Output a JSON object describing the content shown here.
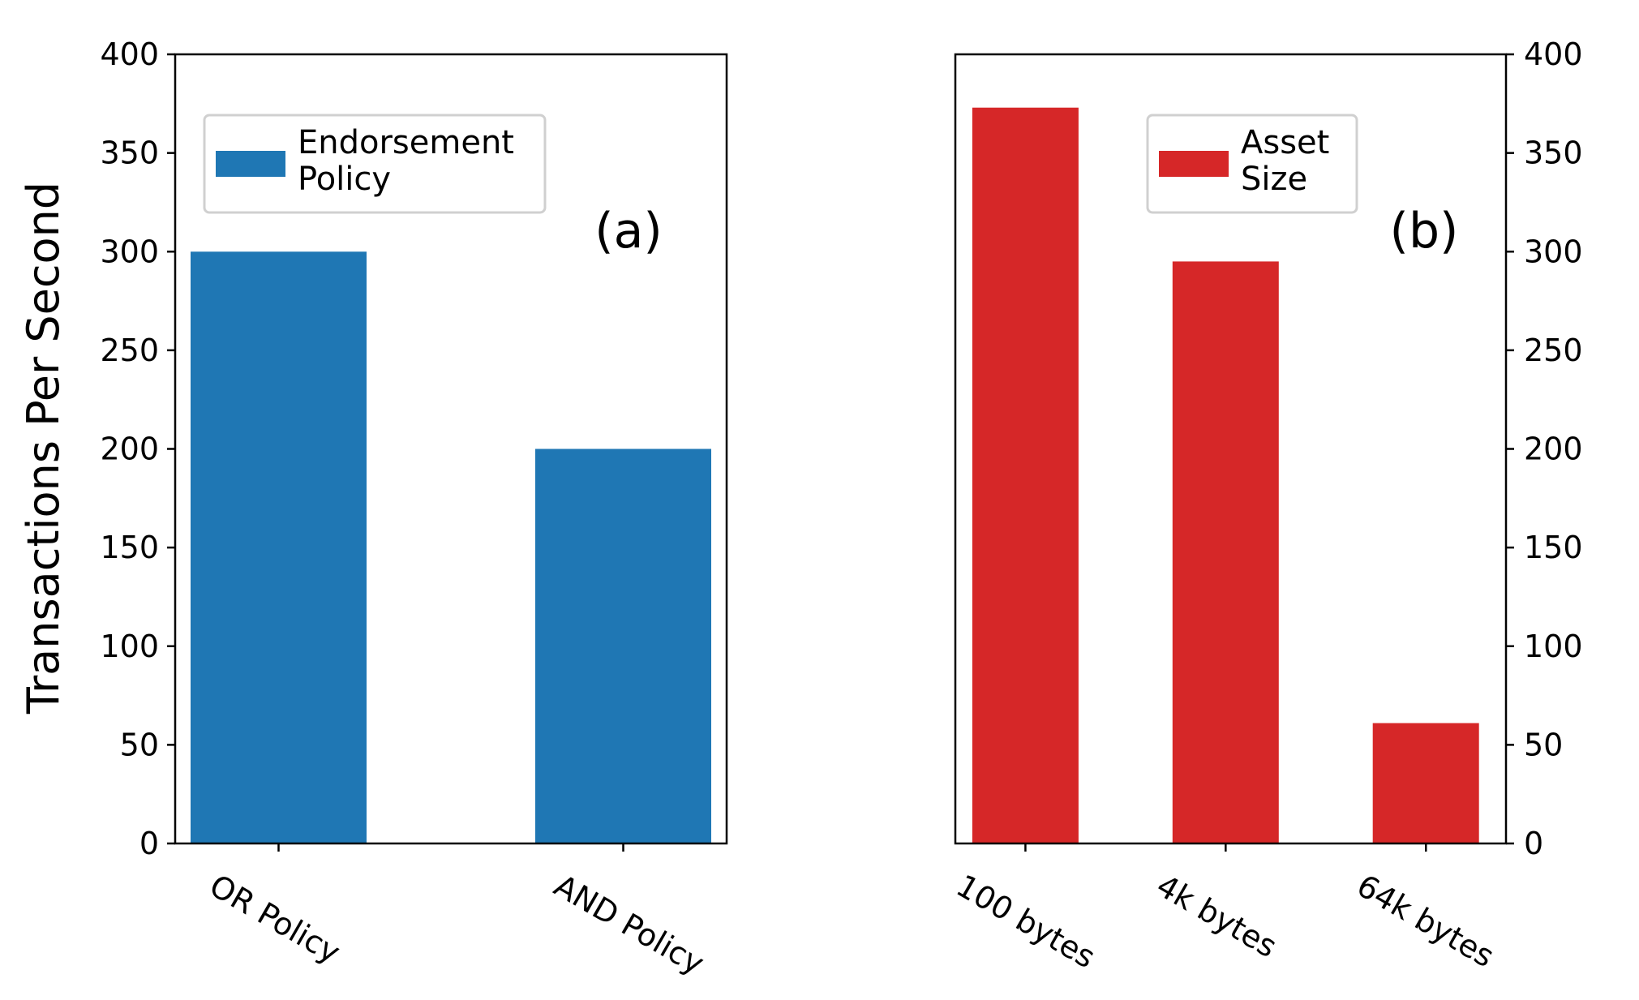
{
  "y_axis_label": "Transactions Per Second",
  "chart_data": [
    {
      "type": "bar",
      "panel_label": "(a)",
      "categories": [
        "OR Policy",
        "AND Policy"
      ],
      "values": [
        300,
        200
      ],
      "legend": "Endorsement Policy",
      "legend_lines": [
        "Endorsement",
        "Policy"
      ],
      "ylabel": "Transactions Per Second",
      "ylim": [
        0,
        400
      ],
      "yticks": [
        0,
        50,
        100,
        150,
        200,
        250,
        300,
        350,
        400
      ],
      "color": "#1f77b4",
      "y_axis_side": "left",
      "legend_position": "upper-left"
    },
    {
      "type": "bar",
      "panel_label": "(b)",
      "categories": [
        "100 bytes",
        "4k bytes",
        "64k bytes"
      ],
      "values": [
        373,
        295,
        61
      ],
      "legend": "Asset Size",
      "legend_lines": [
        "Asset",
        "Size"
      ],
      "ylabel": "",
      "ylim": [
        0,
        400
      ],
      "yticks": [
        0,
        50,
        100,
        150,
        200,
        250,
        300,
        350,
        400
      ],
      "color": "#d62728",
      "y_axis_side": "right",
      "legend_position": "upper-center"
    }
  ]
}
